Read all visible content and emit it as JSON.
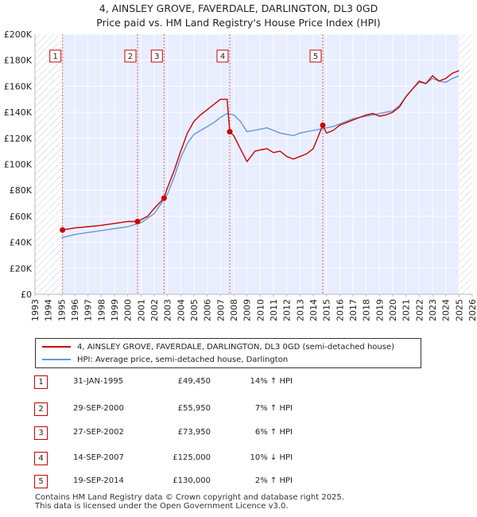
{
  "title_line1": "4, AINSLEY GROVE, FAVERDALE, DARLINGTON, DL3 0GD",
  "title_line2": "Price paid vs. HM Land Registry's House Price Index (HPI)",
  "legend": {
    "property_label": "4, AINSLEY GROVE, FAVERDALE, DARLINGTON, DL3 0GD (semi-detached house)",
    "hpi_label": "HPI: Average price, semi-detached house, Darlington"
  },
  "colors": {
    "property": "#cc0000",
    "hpi": "#6a96d0",
    "band": "#e8eeff"
  },
  "sales": [
    {
      "num": "1",
      "date": "31-JAN-1995",
      "price": "£49,450",
      "hpi": "14% ↑ HPI"
    },
    {
      "num": "2",
      "date": "29-SEP-2000",
      "price": "£55,950",
      "hpi": "7% ↑ HPI"
    },
    {
      "num": "3",
      "date": "27-SEP-2002",
      "price": "£73,950",
      "hpi": "6% ↑ HPI"
    },
    {
      "num": "4",
      "date": "14-SEP-2007",
      "price": "£125,000",
      "hpi": "10% ↓ HPI"
    },
    {
      "num": "5",
      "date": "19-SEP-2014",
      "price": "£130,000",
      "hpi": "2% ↑ HPI"
    }
  ],
  "footer_line1": "Contains HM Land Registry data © Crown copyright and database right 2025.",
  "footer_line2": "This data is licensed under the Open Government Licence v3.0.",
  "chart_data": {
    "type": "line",
    "xlim": [
      1993,
      2026
    ],
    "ylim": [
      0,
      200000
    ],
    "x_ticks": [
      "1993",
      "1994",
      "1995",
      "1996",
      "1997",
      "1998",
      "1999",
      "2000",
      "2001",
      "2002",
      "2003",
      "2004",
      "2005",
      "2006",
      "2007",
      "2008",
      "2009",
      "2010",
      "2011",
      "2012",
      "2013",
      "2014",
      "2015",
      "2016",
      "2017",
      "2018",
      "2019",
      "2020",
      "2021",
      "2022",
      "2023",
      "2024",
      "2025",
      "2026"
    ],
    "y_ticks": [
      {
        "value": 0,
        "label": "£0"
      },
      {
        "value": 20000,
        "label": "£20K"
      },
      {
        "value": 40000,
        "label": "£40K"
      },
      {
        "value": 60000,
        "label": "£60K"
      },
      {
        "value": 80000,
        "label": "£80K"
      },
      {
        "value": 100000,
        "label": "£100K"
      },
      {
        "value": 120000,
        "label": "£120K"
      },
      {
        "value": 140000,
        "label": "£140K"
      },
      {
        "value": 160000,
        "label": "£160K"
      },
      {
        "value": 180000,
        "label": "£180K"
      },
      {
        "value": 200000,
        "label": "£200K"
      }
    ],
    "data_range": [
      1995.0,
      2025.0
    ],
    "grid": true,
    "sale_markers": [
      {
        "label": "1",
        "x": 1995.08,
        "y": 49450
      },
      {
        "label": "2",
        "x": 2000.74,
        "y": 55950
      },
      {
        "label": "3",
        "x": 2002.74,
        "y": 73950
      },
      {
        "label": "4",
        "x": 2007.7,
        "y": 125000
      },
      {
        "label": "5",
        "x": 2014.72,
        "y": 130000
      }
    ],
    "series": [
      {
        "key": "property",
        "x": [
          1995.08,
          1996,
          1997,
          1998,
          1999,
          2000,
          2000.74,
          2001.5,
          2002,
          2002.74,
          2003,
          2003.5,
          2004,
          2004.5,
          2005,
          2005.5,
          2006,
          2006.5,
          2007,
          2007.5,
          2007.7,
          2008,
          2008.5,
          2009,
          2009.3,
          2009.6,
          2010,
          2010.5,
          2011,
          2011.5,
          2012,
          2012.5,
          2013,
          2013.5,
          2014,
          2014.72,
          2015,
          2015.5,
          2016,
          2016.5,
          2017,
          2017.5,
          2018,
          2018.5,
          2019,
          2019.5,
          2020,
          2020.5,
          2021,
          2021.5,
          2022,
          2022.5,
          2023,
          2023.5,
          2024,
          2024.5,
          2025
        ],
        "y": [
          49450,
          51000,
          52000,
          53000,
          54500,
          56000,
          55950,
          60000,
          66000,
          73950,
          82000,
          95000,
          110000,
          124000,
          133000,
          138000,
          142000,
          146000,
          150000,
          150000,
          125000,
          122000,
          112000,
          102000,
          106000,
          110000,
          111000,
          112000,
          109000,
          110000,
          106000,
          104000,
          106000,
          108000,
          112000,
          130000,
          124000,
          126000,
          130000,
          132000,
          134000,
          136000,
          138000,
          139000,
          137000,
          138000,
          140000,
          144000,
          152000,
          158000,
          164000,
          162000,
          168000,
          164000,
          166000,
          170000,
          172000
        ]
      },
      {
        "key": "hpi",
        "x": [
          1995.0,
          1996,
          1997,
          1998,
          1999,
          2000,
          2001,
          2002,
          2003,
          2003.5,
          2004,
          2004.5,
          2005,
          2005.5,
          2006,
          2006.5,
          2007,
          2007.5,
          2008,
          2008.5,
          2009,
          2009.5,
          2010,
          2010.5,
          2011,
          2011.5,
          2012,
          2012.5,
          2013,
          2013.5,
          2014,
          2014.5,
          2015,
          2015.5,
          2016,
          2016.5,
          2017,
          2017.5,
          2018,
          2018.5,
          2019,
          2019.5,
          2020,
          2020.5,
          2021,
          2021.5,
          2022,
          2022.5,
          2023,
          2023.5,
          2024,
          2024.5,
          2025
        ],
        "y": [
          43500,
          46000,
          47500,
          49000,
          50500,
          52000,
          55000,
          62000,
          77000,
          90000,
          105000,
          116000,
          123000,
          126000,
          129000,
          132000,
          136000,
          139000,
          138000,
          133000,
          125000,
          126000,
          127000,
          128000,
          126000,
          124000,
          123000,
          122000,
          124000,
          125000,
          126000,
          127000,
          128000,
          129000,
          131000,
          133000,
          135000,
          136000,
          137000,
          138000,
          139000,
          140000,
          141000,
          145000,
          152000,
          158000,
          163000,
          162000,
          166000,
          164000,
          163000,
          166000,
          168000
        ]
      }
    ]
  }
}
